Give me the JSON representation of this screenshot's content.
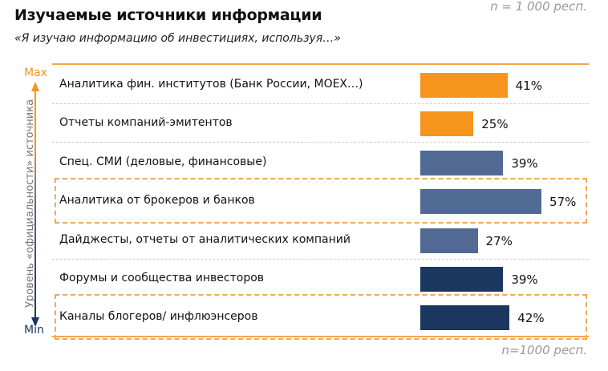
{
  "header": {
    "title": "Изучаемые источники информации",
    "subtitle": "«Я изучаю информацию об инвестициях, используя…»",
    "top_note": "n = 1 000 респ."
  },
  "axis": {
    "label": "Уровень «официальности» источника",
    "max": "Max",
    "min": "Min"
  },
  "footer_note": "n=1000 респ.",
  "colors": {
    "orange": "#F7941D",
    "mid_blue": "#506A94",
    "navy": "#1B365F",
    "highlight": "#F2A65A"
  },
  "chart_data": {
    "type": "bar",
    "orientation": "horizontal",
    "unit": "%",
    "categories": [
      "Аналитика фин. институтов (Банк России, МОЕХ…)",
      "Отчеты компаний-эмитентов",
      "Спец. СМИ (деловые, финансовые)",
      "Аналитика от брокеров и банков",
      "Дайджесты, отчеты от аналитических компаний",
      "Форумы и сообщества инвесторов",
      "Каналы блогеров/ инфлюэнсеров"
    ],
    "values": [
      41,
      25,
      39,
      57,
      27,
      39,
      42
    ],
    "labels": [
      "41%",
      "25%",
      "39%",
      "57%",
      "27%",
      "39%",
      "42%"
    ],
    "bar_colors": [
      "#F7941D",
      "#F7941D",
      "#506A94",
      "#506A94",
      "#506A94",
      "#1B365F",
      "#1B365F"
    ],
    "highlighted": [
      false,
      false,
      false,
      true,
      false,
      false,
      true
    ]
  }
}
